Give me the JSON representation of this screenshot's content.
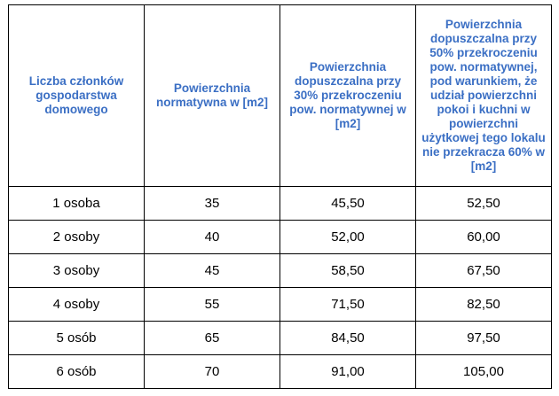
{
  "colors": {
    "header_text": "#3b6fc4",
    "cell_text": "#000000",
    "border": "#000000"
  },
  "table": {
    "headers": [
      "Liczba członków gospodarstwa domowego",
      "Powierzchnia normatywna w [m2]",
      "Powierzchnia dopuszczalna przy 30% przekroczeniu pow. normatywnej w [m2]",
      "Powierzchnia dopuszczalna przy 50% przekroczeniu pow. normatywnej, pod warunkiem, że udział powierzchni pokoi i kuchni w powierzchni użytkowej tego lokalu nie przekracza 60% w [m2]"
    ],
    "rows": [
      [
        "1 osoba",
        "35",
        "45,50",
        "52,50"
      ],
      [
        "2 osoby",
        "40",
        "52,00",
        "60,00"
      ],
      [
        "3 osoby",
        "45",
        "58,50",
        "67,50"
      ],
      [
        "4 osoby",
        "55",
        "71,50",
        "82,50"
      ],
      [
        "5 osób",
        "65",
        "84,50",
        "97,50"
      ],
      [
        "6 osób",
        "70",
        "91,00",
        "105,00"
      ]
    ]
  }
}
